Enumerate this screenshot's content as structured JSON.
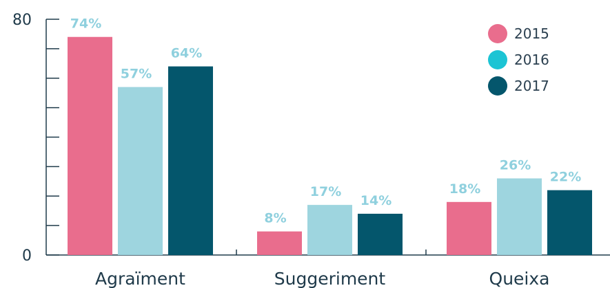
{
  "chart_data": {
    "type": "bar",
    "categories": [
      "Agraïment",
      "Suggeriment",
      "Queixa"
    ],
    "series": [
      {
        "name": "2015",
        "values": [
          74,
          8,
          18
        ],
        "labels": [
          "74%",
          "8%",
          "18%"
        ]
      },
      {
        "name": "2016",
        "values": [
          57,
          17,
          26
        ],
        "labels": [
          "57%",
          "17%",
          "26%"
        ]
      },
      {
        "name": "2017",
        "values": [
          64,
          14,
          22
        ],
        "labels": [
          "64%",
          "14%",
          "22%"
        ]
      }
    ],
    "ylim": [
      0,
      80
    ],
    "y_tick_labels": [
      "0",
      "80"
    ],
    "y_tick_step": 10,
    "legend_position": "top-right",
    "grid": false
  },
  "colors": {
    "series_bars": [
      "#e96d8d",
      "#9ed5df",
      "#04566c"
    ],
    "legend_markers": [
      "#e96d8d",
      "#1cc4d4",
      "#04566c"
    ],
    "data_label": "#8fd0de",
    "axis": "#1f3a4a"
  }
}
